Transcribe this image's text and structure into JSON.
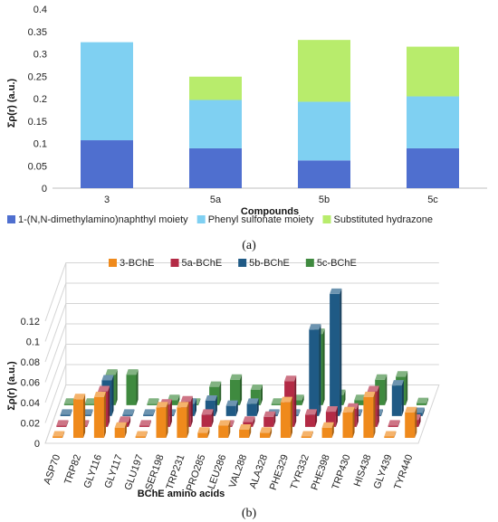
{
  "chart_data": [
    {
      "type": "bar",
      "stacked": true,
      "panel_label": "(a)",
      "xlabel": "Compounds",
      "ylabel": "Σρ(r) (a.u.)",
      "ylim": [
        0,
        0.4
      ],
      "yticks": [
        "0",
        "0.05",
        "0.1",
        "0.15",
        "0.2",
        "0.25",
        "0.3",
        "0.35",
        "0.4"
      ],
      "grid": false,
      "legend_position": "bottom",
      "categories": [
        "3",
        "5a",
        "5b",
        "5c"
      ],
      "series": [
        {
          "name": "1-(N,N-dimethylamino)naphthyl moiety",
          "color": "#4f6fcf",
          "values": [
            0.107,
            0.089,
            0.062,
            0.089
          ]
        },
        {
          "name": "Phenyl sulfonate moiety",
          "color": "#7fd0f2",
          "values": [
            0.219,
            0.108,
            0.131,
            0.116
          ]
        },
        {
          "name": "Substituted hydrazone",
          "color": "#b8ec6c",
          "values": [
            0,
            0.052,
            0.138,
            0.111
          ]
        }
      ]
    },
    {
      "type": "bar",
      "style": "3d-clustered",
      "panel_label": "(b)",
      "xlabel": "BChE amino acids",
      "ylabel": "Σρ(r) (a.u.)",
      "ylim": [
        0,
        0.12
      ],
      "yticks": [
        "0",
        "0.02",
        "0.04",
        "0.06",
        "0.08",
        "0.1",
        "0.12"
      ],
      "grid": true,
      "legend_position": "top",
      "categories": [
        "ASP70",
        "TRP82",
        "GLY116",
        "GLY117",
        "GLU197",
        "SER198",
        "TRP231",
        "PRO285",
        "LEU286",
        "VAL288",
        "ALA328",
        "PHE329",
        "TYR332",
        "PHE398",
        "TRP430",
        "HIS438",
        "GLY439",
        "TYR440"
      ],
      "series": [
        {
          "name": "3-BChE",
          "color": "#ef8a1c",
          "values": [
            0,
            0.038,
            0.04,
            0.01,
            0,
            0.03,
            0.03,
            0.005,
            0.012,
            0.008,
            0.005,
            0.035,
            0,
            0.01,
            0.025,
            0.04,
            0,
            0.025
          ]
        },
        {
          "name": "5a-BChE",
          "color": "#b32a45",
          "values": [
            0,
            0,
            0.035,
            0.005,
            0,
            0.022,
            0.025,
            0.012,
            0,
            0.005,
            0.01,
            0.045,
            0.012,
            0.015,
            0.018,
            0.035,
            0,
            0.007
          ]
        },
        {
          "name": "5b-BChE",
          "color": "#1f5a85",
          "values": [
            0,
            0,
            0.035,
            0,
            0,
            0,
            0.012,
            0.015,
            0.01,
            0.012,
            0,
            0,
            0.085,
            0.12,
            0,
            0,
            0.03,
            0.003
          ]
        },
        {
          "name": "5c-BChE",
          "color": "#3f8a3f",
          "values": [
            0,
            0,
            0.03,
            0.03,
            0,
            0.005,
            0,
            0.018,
            0.025,
            0.015,
            0,
            0.005,
            0.07,
            0.01,
            0.005,
            0.025,
            0.028,
            0.002
          ]
        }
      ]
    }
  ]
}
